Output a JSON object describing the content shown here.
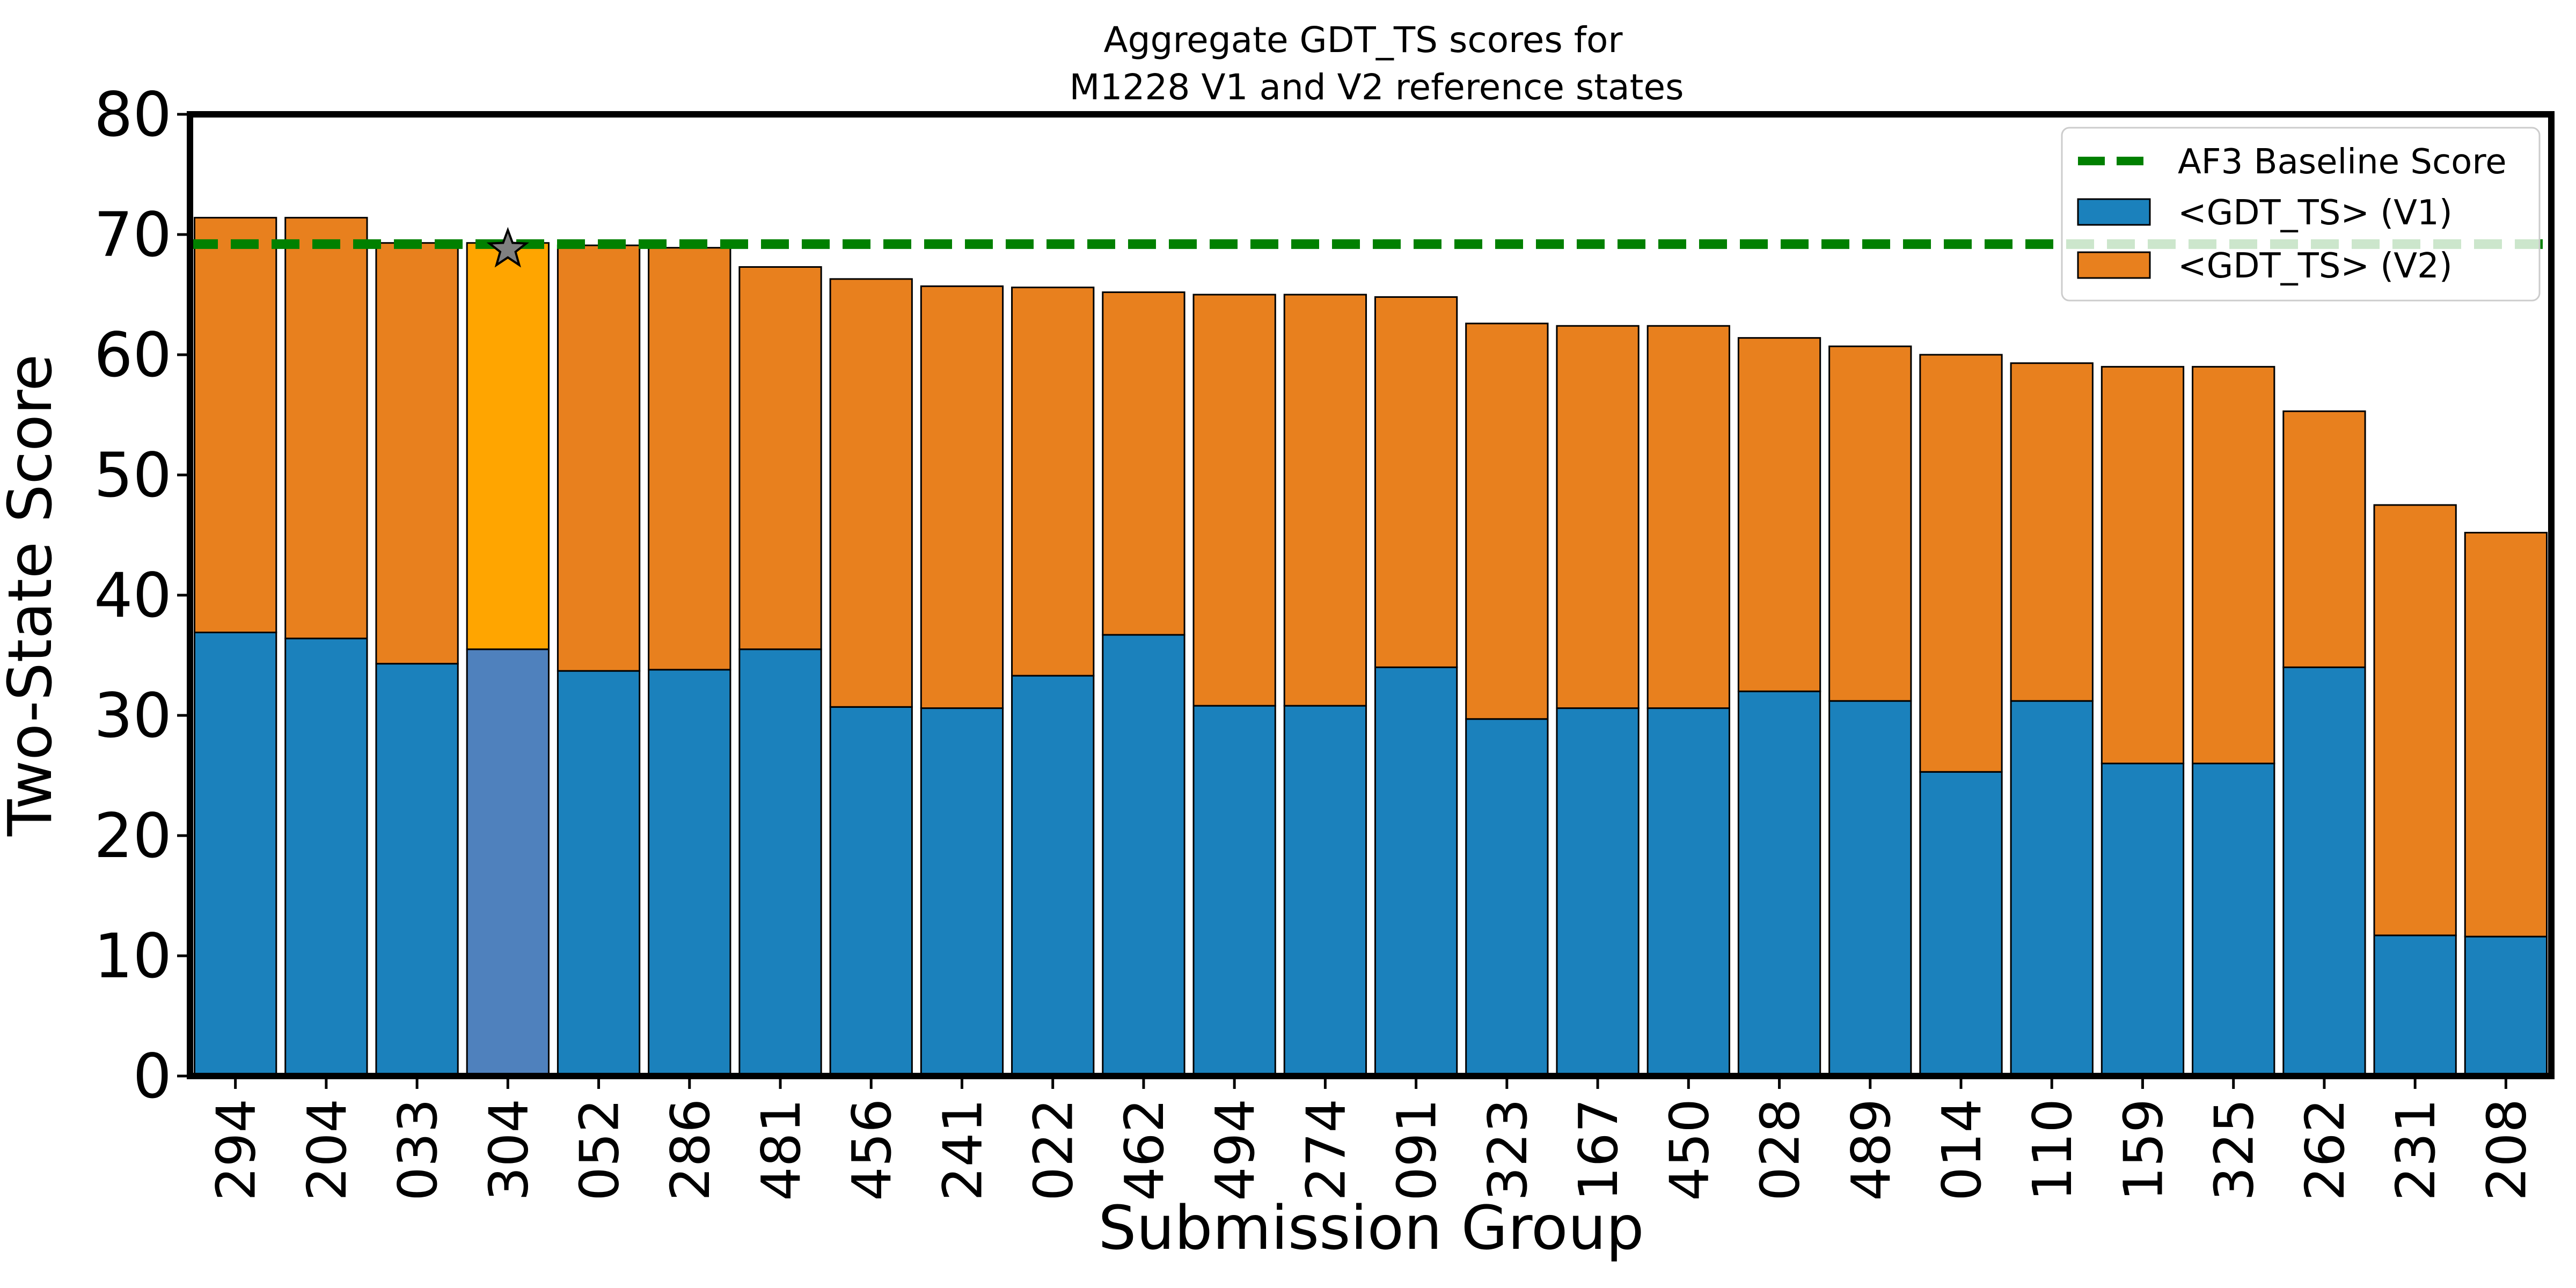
{
  "chart_data": {
    "type": "bar",
    "stacked": true,
    "title_lines": [
      "Aggregate GDT_TS scores for",
      "M1228 V1 and V2 reference states"
    ],
    "xlabel": "Submission Group",
    "ylabel": "Two-State Score",
    "ylim": [
      0,
      80
    ],
    "yticks": [
      0,
      10,
      20,
      30,
      40,
      50,
      60,
      70,
      80
    ],
    "grid": false,
    "legend_position": "top-right",
    "categories": [
      "294",
      "204",
      "033",
      "304",
      "052",
      "286",
      "481",
      "456",
      "241",
      "022",
      "462",
      "494",
      "274",
      "091",
      "323",
      "167",
      "450",
      "028",
      "489",
      "014",
      "110",
      "159",
      "325",
      "262",
      "231",
      "208"
    ],
    "series": [
      {
        "name": "<GDT_TS> (V1)",
        "color": "#1b81bc",
        "values": [
          36.9,
          36.4,
          34.3,
          35.5,
          33.7,
          33.8,
          35.5,
          30.7,
          30.6,
          33.3,
          36.7,
          30.8,
          30.8,
          34.0,
          29.7,
          30.6,
          30.6,
          32.0,
          31.2,
          25.3,
          31.2,
          26.0,
          26.0,
          34.0,
          11.7,
          11.6
        ]
      },
      {
        "name": "<GDT_TS> (V2)",
        "color": "#e8801e",
        "values": [
          34.5,
          35.0,
          35.0,
          33.8,
          35.4,
          35.1,
          31.8,
          35.6,
          35.1,
          32.3,
          28.5,
          34.2,
          34.2,
          30.8,
          32.9,
          31.8,
          31.8,
          29.4,
          29.5,
          34.7,
          28.1,
          33.0,
          33.0,
          21.3,
          35.8,
          33.6
        ]
      }
    ],
    "highlight": {
      "category": "304",
      "v1_color": "#4f81bd",
      "v2_color": "#ffa500",
      "marker": "star",
      "marker_color": "#808080"
    },
    "baseline": {
      "name": "AF3 Baseline Score",
      "value": 69.2,
      "color": "#008000",
      "style": "dashed"
    }
  }
}
